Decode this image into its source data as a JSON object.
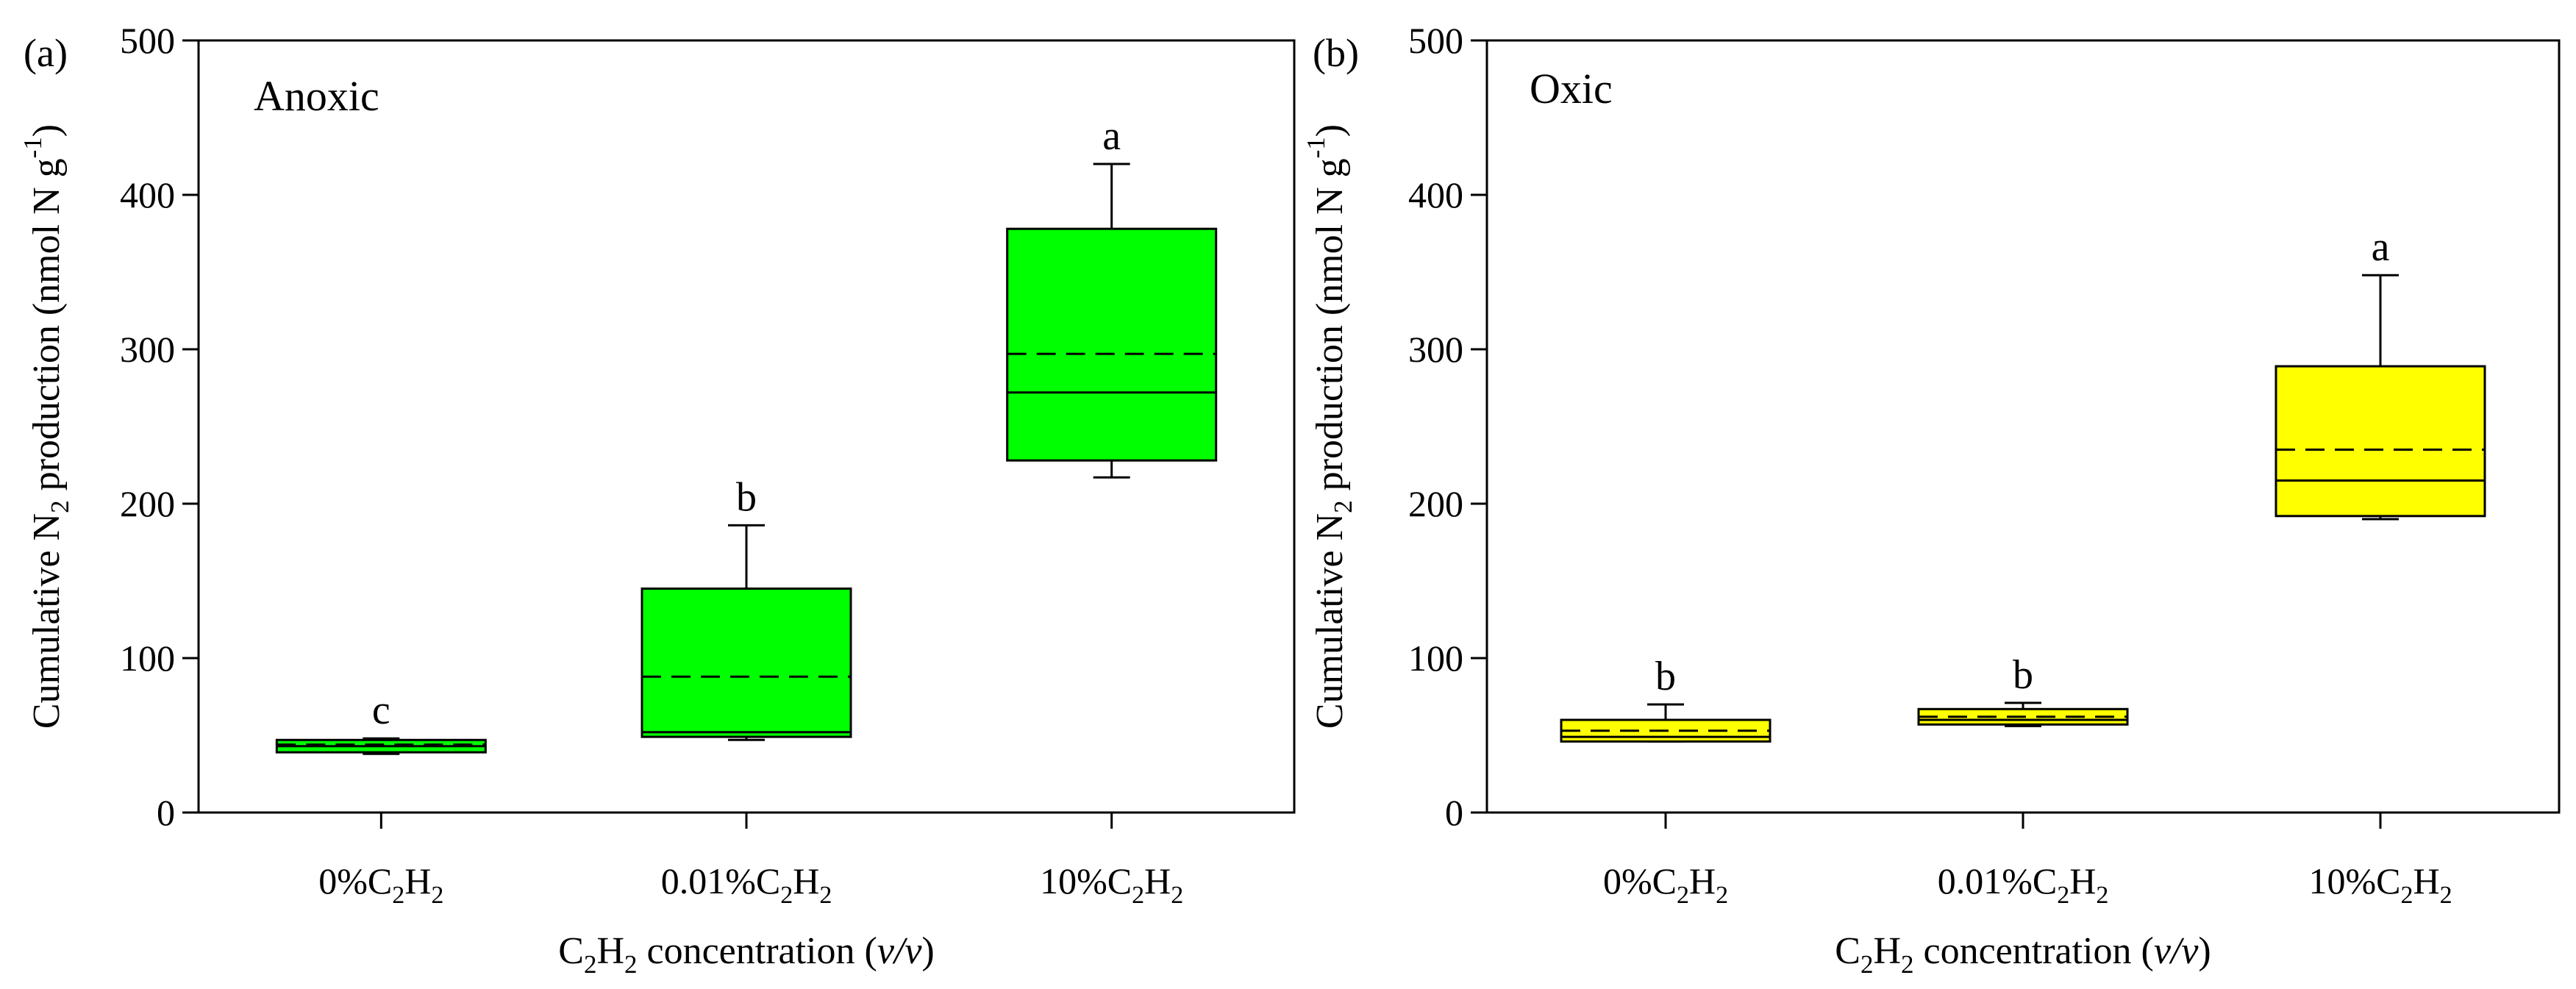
{
  "figure": {
    "panels": [
      {
        "id": "a",
        "panel_label": "(a)",
        "title": "Anoxic",
        "fill_color": "#00ff00"
      },
      {
        "id": "b",
        "panel_label": "(b)",
        "title": "Oxic",
        "fill_color": "#ffff00"
      }
    ]
  },
  "chart_data": [
    {
      "type": "box",
      "title": "Anoxic",
      "panel_label": "(a)",
      "xlabel": "C2H2 concentration (v/v)",
      "ylabel": "Cumulative N2 production (nmol N g-1)",
      "ylim": [
        0,
        500
      ],
      "yticks": [
        0,
        100,
        200,
        300,
        400,
        500
      ],
      "categories": [
        "0%C2H2",
        "0.01%C2H2",
        "10%C2H2"
      ],
      "boxes": [
        {
          "category": "0%C2H2",
          "whisker_low": 38,
          "q1": 39,
          "median": 43,
          "mean": 44,
          "q3": 47,
          "whisker_high": 48,
          "letter": "c"
        },
        {
          "category": "0.01%C2H2",
          "whisker_low": 47,
          "q1": 49,
          "median": 52,
          "mean": 88,
          "q3": 145,
          "whisker_high": 186,
          "letter": "b"
        },
        {
          "category": "10%C2H2",
          "whisker_low": 217,
          "q1": 228,
          "median": 272,
          "mean": 297,
          "q3": 378,
          "whisker_high": 420,
          "letter": "a"
        }
      ]
    },
    {
      "type": "box",
      "title": "Oxic",
      "panel_label": "(b)",
      "xlabel": "C2H2 concentration (v/v)",
      "ylabel": "Cumulative N2 production (nmol N g-1)",
      "ylim": [
        0,
        500
      ],
      "yticks": [
        0,
        100,
        200,
        300,
        400,
        500
      ],
      "categories": [
        "0%C2H2",
        "0.01%C2H2",
        "10%C2H2"
      ],
      "boxes": [
        {
          "category": "0%C2H2",
          "whisker_low": 46,
          "q1": 46,
          "median": 49,
          "mean": 53,
          "q3": 60,
          "whisker_high": 70,
          "letter": "b"
        },
        {
          "category": "0.01%C2H2",
          "whisker_low": 56,
          "q1": 57,
          "median": 60,
          "mean": 62,
          "q3": 67,
          "whisker_high": 71,
          "letter": "b"
        },
        {
          "category": "10%C2H2",
          "whisker_low": 190,
          "q1": 192,
          "median": 215,
          "mean": 235,
          "q3": 289,
          "whisker_high": 348,
          "letter": "a"
        }
      ]
    }
  ]
}
